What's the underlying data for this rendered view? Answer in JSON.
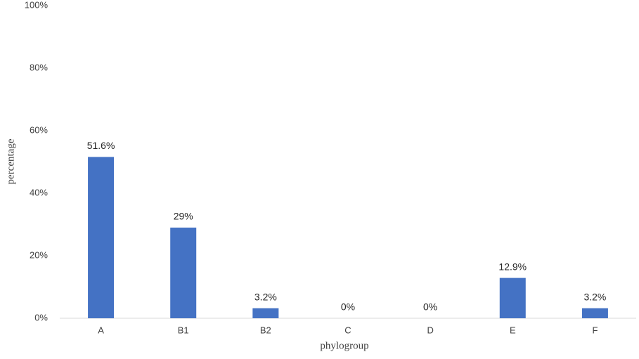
{
  "chart_data": {
    "type": "bar",
    "x_label": "phylogroup",
    "y_label": "percentage",
    "categories": [
      "A",
      "B1",
      "B2",
      "C",
      "D",
      "E",
      "F"
    ],
    "values": [
      51.6,
      29,
      3.2,
      0,
      0,
      12.9,
      3.2
    ],
    "value_labels": [
      "51.6%",
      "29%",
      "3.2%",
      "0%",
      "0%",
      "12.9%",
      "3.2%"
    ],
    "color": "#4472c4",
    "ylim": [
      0,
      100
    ],
    "yticks": [
      {
        "value": 0,
        "label": "0%"
      },
      {
        "value": 20,
        "label": "20%"
      },
      {
        "value": 40,
        "label": "40%"
      },
      {
        "value": 60,
        "label": "60%"
      },
      {
        "value": 80,
        "label": "80%"
      },
      {
        "value": 100,
        "label": "100%"
      }
    ],
    "grid": false
  }
}
